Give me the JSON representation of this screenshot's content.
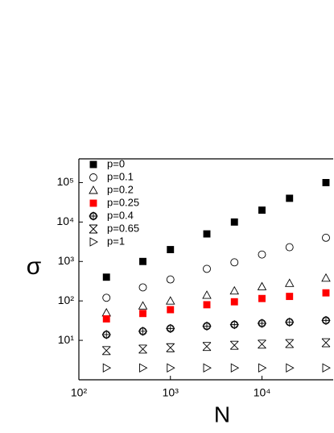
{
  "chart_data": {
    "type": "scatter",
    "xlabel": "N",
    "ylabel": "σ",
    "x": [
      200,
      500,
      1000,
      2500,
      5000,
      10000,
      20000,
      50000
    ],
    "xlim": [
      100,
      60000
    ],
    "ylim": [
      1,
      400000
    ],
    "xlog": true,
    "ylog": true,
    "xticks": [
      {
        "value": 100,
        "label": "10²"
      },
      {
        "value": 1000,
        "label": "10³"
      },
      {
        "value": 10000,
        "label": "10⁴"
      }
    ],
    "yticks": [
      {
        "value": 10,
        "label": "10¹"
      },
      {
        "value": 100,
        "label": "10²"
      },
      {
        "value": 1000,
        "label": "10³"
      },
      {
        "value": 10000,
        "label": "10⁴"
      },
      {
        "value": 100000,
        "label": "10⁵"
      }
    ],
    "legend": "upper left",
    "series": [
      {
        "name": "p=0",
        "color": "#000000",
        "marker": "filled-square",
        "values": [
          400,
          1000,
          2000,
          5000,
          10000,
          20000,
          40000,
          100000
        ]
      },
      {
        "name": "p=0.1",
        "color": "#000000",
        "marker": "circle",
        "values": [
          120,
          220,
          350,
          650,
          950,
          1500,
          2300,
          4000
        ]
      },
      {
        "name": "p=0.2",
        "color": "#000000",
        "marker": "triangle",
        "values": [
          50,
          75,
          100,
          140,
          180,
          230,
          280,
          380
        ]
      },
      {
        "name": "p=0.25",
        "color": "#ff0000",
        "marker": "filled-square",
        "values": [
          35,
          48,
          60,
          80,
          95,
          115,
          130,
          160
        ]
      },
      {
        "name": "p=0.4",
        "color": "#000000",
        "marker": "crossed-circle",
        "values": [
          14,
          17,
          20,
          23,
          25,
          27,
          29,
          32
        ]
      },
      {
        "name": "p=0.65",
        "color": "#000000",
        "marker": "hourglass-x",
        "values": [
          5.5,
          6,
          6.5,
          7,
          7.5,
          8,
          8.3,
          8.7
        ]
      },
      {
        "name": "p=1",
        "color": "#000000",
        "marker": "right-triangle",
        "values": [
          2,
          2,
          2,
          2,
          2,
          2,
          2,
          2
        ]
      }
    ]
  }
}
